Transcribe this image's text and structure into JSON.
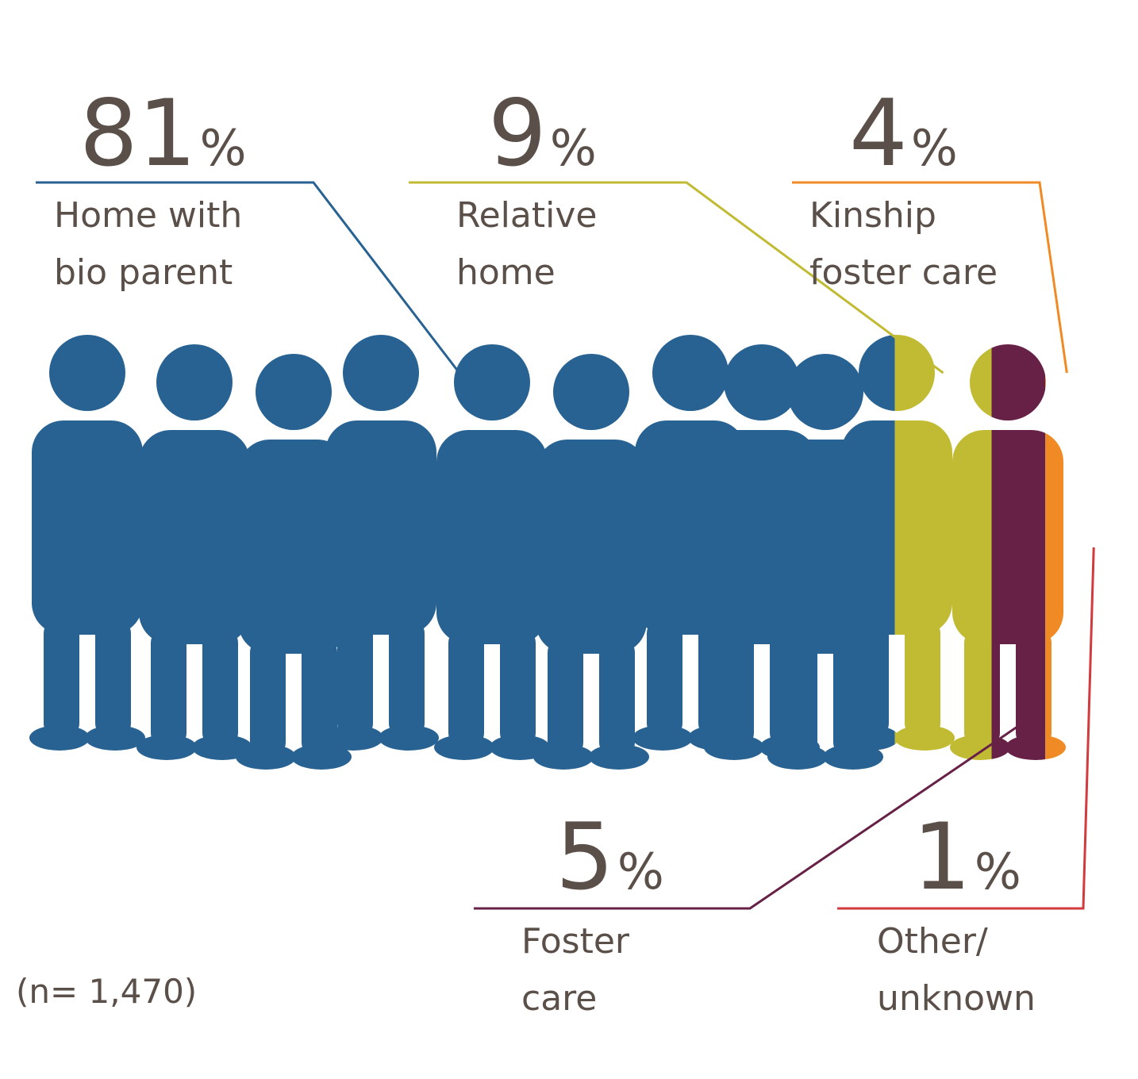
{
  "chart_data": {
    "type": "stacked-bar",
    "categories": [
      "Home with\nbio parent",
      "Relative\nhome",
      "Foster\ncare",
      "Kinship\nfoster care",
      "Other/\nunknown"
    ],
    "values": [
      81,
      9,
      5,
      4,
      1
    ],
    "value_unit": "%",
    "colors": [
      "#276292",
      "#c1bb34",
      "#672146",
      "#f08a24",
      "#d23a3e"
    ],
    "xlim": [
      0,
      100
    ],
    "note": "(n= 1,470)"
  }
}
